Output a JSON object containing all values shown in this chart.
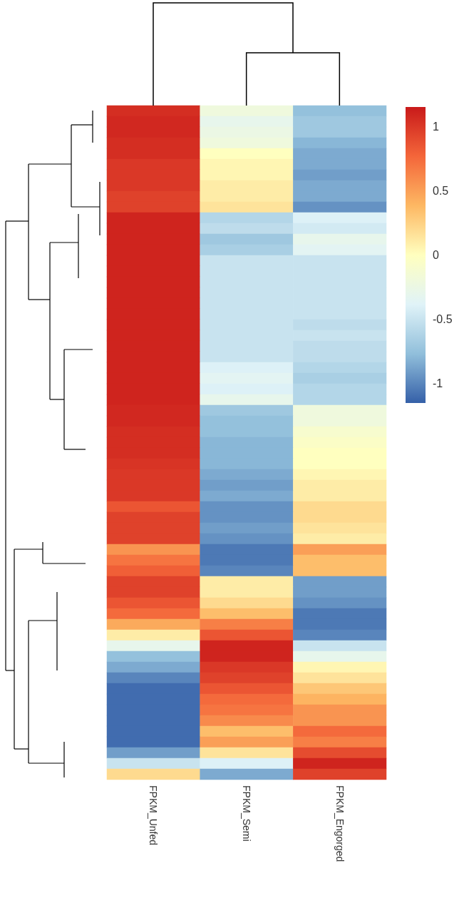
{
  "chart_data": {
    "type": "heatmap",
    "categories": [
      "FPKM_Unfed",
      "FPKM_Semi",
      "FPKM_Engorged"
    ],
    "y_categories": [
      null,
      null,
      null,
      null,
      null,
      null,
      null,
      null,
      null,
      null,
      null,
      null,
      null,
      null,
      null,
      null,
      null,
      null,
      null,
      null,
      null,
      null,
      null,
      null,
      null,
      null,
      null,
      null,
      null,
      null,
      null,
      null,
      null,
      null,
      null,
      null,
      null,
      null,
      null,
      null,
      null,
      null,
      null,
      null,
      null,
      null,
      null,
      null,
      null,
      null,
      null,
      null,
      null,
      null,
      null,
      null,
      null,
      null,
      null,
      null,
      null,
      null,
      null
    ],
    "cells": [
      [
        1.05,
        -0.2,
        -0.75
      ],
      [
        1.08,
        -0.3,
        -0.7
      ],
      [
        1.08,
        -0.25,
        -0.7
      ],
      [
        1.05,
        -0.2,
        -0.8
      ],
      [
        1.05,
        0.0,
        -0.85
      ],
      [
        1.0,
        0.05,
        -0.85
      ],
      [
        1.0,
        0.05,
        -0.9
      ],
      [
        1.0,
        0.1,
        -0.85
      ],
      [
        0.95,
        0.1,
        -0.85
      ],
      [
        0.95,
        0.15,
        -0.95
      ],
      [
        1.1,
        -0.6,
        -0.4
      ],
      [
        1.1,
        -0.55,
        -0.45
      ],
      [
        1.1,
        -0.7,
        -0.3
      ],
      [
        1.1,
        -0.65,
        -0.35
      ],
      [
        1.1,
        -0.5,
        -0.5
      ],
      [
        1.1,
        -0.5,
        -0.5
      ],
      [
        1.1,
        -0.5,
        -0.5
      ],
      [
        1.1,
        -0.5,
        -0.5
      ],
      [
        1.1,
        -0.5,
        -0.5
      ],
      [
        1.1,
        -0.5,
        -0.5
      ],
      [
        1.1,
        -0.5,
        -0.55
      ],
      [
        1.1,
        -0.5,
        -0.5
      ],
      [
        1.1,
        -0.5,
        -0.55
      ],
      [
        1.1,
        -0.5,
        -0.55
      ],
      [
        1.1,
        -0.4,
        -0.6
      ],
      [
        1.1,
        -0.35,
        -0.65
      ],
      [
        1.1,
        -0.4,
        -0.6
      ],
      [
        1.1,
        -0.3,
        -0.6
      ],
      [
        1.08,
        -0.7,
        -0.2
      ],
      [
        1.08,
        -0.75,
        -0.2
      ],
      [
        1.05,
        -0.75,
        -0.1
      ],
      [
        1.05,
        -0.8,
        -0.05
      ],
      [
        1.05,
        -0.8,
        0.0
      ],
      [
        1.02,
        -0.8,
        0.0
      ],
      [
        1.0,
        -0.85,
        0.05
      ],
      [
        1.0,
        -0.9,
        0.1
      ],
      [
        1.0,
        -0.85,
        0.1
      ],
      [
        0.85,
        -0.95,
        0.2
      ],
      [
        0.95,
        -0.95,
        0.2
      ],
      [
        0.95,
        -0.9,
        0.15
      ],
      [
        0.95,
        -0.95,
        0.1
      ],
      [
        0.55,
        -1.05,
        0.5
      ],
      [
        0.7,
        -1.05,
        0.35
      ],
      [
        0.8,
        -1.0,
        0.35
      ],
      [
        0.95,
        0.1,
        -0.9
      ],
      [
        0.95,
        0.1,
        -0.9
      ],
      [
        0.85,
        0.2,
        -0.95
      ],
      [
        0.75,
        0.35,
        -1.05
      ],
      [
        0.45,
        0.65,
        -1.05
      ],
      [
        0.1,
        0.85,
        -1.0
      ],
      [
        -0.3,
        1.1,
        -0.5
      ],
      [
        -0.75,
        1.1,
        -0.3
      ],
      [
        -0.85,
        1.0,
        0.05
      ],
      [
        -1.0,
        0.95,
        0.15
      ],
      [
        -1.1,
        0.85,
        0.3
      ],
      [
        -1.1,
        0.75,
        0.4
      ],
      [
        -1.1,
        0.7,
        0.55
      ],
      [
        -1.1,
        0.6,
        0.55
      ],
      [
        -1.1,
        0.35,
        0.75
      ],
      [
        -1.1,
        0.5,
        0.65
      ],
      [
        -0.9,
        0.15,
        0.9
      ],
      [
        -0.5,
        -0.4,
        1.1
      ],
      [
        0.2,
        -0.85,
        0.95
      ]
    ],
    "clim": [
      -1.15,
      1.15
    ],
    "cticks": [
      -1,
      -0.5,
      0,
      0.5,
      1
    ],
    "tick_labels": "x"
  }
}
